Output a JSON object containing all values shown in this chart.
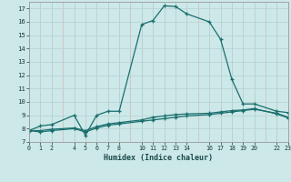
{
  "xlabel": "Humidex (Indice chaleur)",
  "background_color": "#cce8e8",
  "grid_color": "#b8d4d4",
  "line_color": "#1a6e6e",
  "ylim": [
    7,
    17.5
  ],
  "xlim": [
    0,
    23
  ],
  "yticks": [
    7,
    8,
    9,
    10,
    11,
    12,
    13,
    14,
    15,
    16,
    17
  ],
  "xticks": [
    0,
    1,
    2,
    4,
    5,
    6,
    7,
    8,
    10,
    11,
    12,
    13,
    14,
    16,
    17,
    18,
    19,
    20,
    22,
    23
  ],
  "series1_x": [
    0,
    1,
    2,
    4,
    5,
    6,
    7,
    8,
    10,
    11,
    12,
    13,
    14,
    16,
    17,
    18,
    19,
    20,
    22,
    23
  ],
  "series1_y": [
    7.85,
    8.2,
    8.3,
    9.0,
    7.5,
    9.0,
    9.3,
    9.3,
    15.8,
    16.1,
    17.2,
    17.15,
    16.6,
    16.0,
    14.7,
    11.7,
    9.85,
    9.85,
    9.3,
    9.2
  ],
  "series2_x": [
    0,
    1,
    2,
    4,
    5,
    6,
    7,
    8,
    10,
    11,
    12,
    13,
    14,
    16,
    17,
    18,
    19,
    20,
    22,
    23
  ],
  "series2_y": [
    7.85,
    7.75,
    7.85,
    8.0,
    7.75,
    8.05,
    8.25,
    8.35,
    8.55,
    8.65,
    8.75,
    8.85,
    8.95,
    9.05,
    9.15,
    9.25,
    9.35,
    9.45,
    9.15,
    8.85
  ],
  "series3_x": [
    0,
    1,
    2,
    4,
    5,
    6,
    7,
    8,
    10,
    11,
    12,
    13,
    14,
    16,
    17,
    18,
    19,
    20,
    22,
    23
  ],
  "series3_y": [
    7.85,
    7.85,
    7.95,
    8.05,
    7.85,
    8.15,
    8.35,
    8.45,
    8.65,
    8.85,
    8.95,
    9.05,
    9.1,
    9.15,
    9.25,
    9.35,
    9.4,
    9.5,
    9.1,
    8.8
  ]
}
